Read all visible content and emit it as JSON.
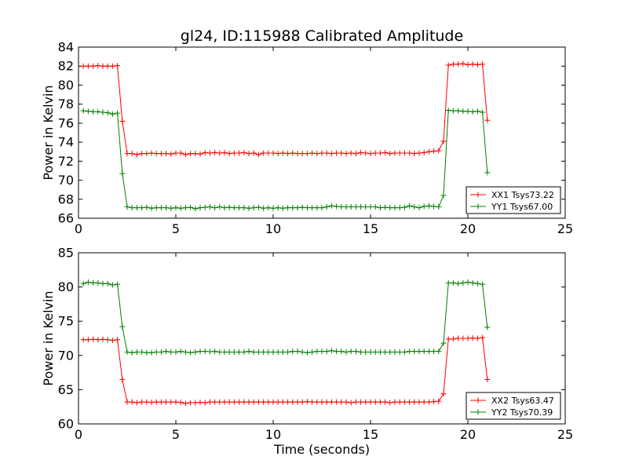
{
  "chart_data": [
    {
      "type": "line",
      "title": "gl24, ID:115988 Calibrated Amplitude",
      "xlabel": "",
      "ylabel": "Power in Kelvin",
      "xlim": [
        0,
        25
      ],
      "ylim": [
        66,
        84
      ],
      "xticks": [
        0,
        5,
        10,
        15,
        20,
        25
      ],
      "yticks": [
        66,
        68,
        70,
        72,
        74,
        76,
        78,
        80,
        82,
        84
      ],
      "legend_position": "lower-right",
      "grid": false,
      "series": [
        {
          "name": "XX1 Tsys73.22",
          "color": "#ff0000",
          "x": [
            0.25,
            0.5,
            0.75,
            1.0,
            1.25,
            1.5,
            1.75,
            2.0,
            2.25,
            2.5,
            2.75,
            3.0,
            3.25,
            3.5,
            3.75,
            4.0,
            4.25,
            4.5,
            4.75,
            5.0,
            5.25,
            5.5,
            5.75,
            6.0,
            6.25,
            6.5,
            6.75,
            7.0,
            7.25,
            7.5,
            7.75,
            8.0,
            8.25,
            8.5,
            8.75,
            9.0,
            9.25,
            9.5,
            9.75,
            10.0,
            10.25,
            10.5,
            10.75,
            11.0,
            11.25,
            11.5,
            11.75,
            12.0,
            12.25,
            12.5,
            12.75,
            13.0,
            13.25,
            13.5,
            13.75,
            14.0,
            14.25,
            14.5,
            14.75,
            15.0,
            15.25,
            15.5,
            15.75,
            16.0,
            16.25,
            16.5,
            16.75,
            17.0,
            17.25,
            17.5,
            17.75,
            18.0,
            18.25,
            18.5,
            18.75,
            19.0,
            19.25,
            19.5,
            19.75,
            20.0,
            20.25,
            20.5,
            20.75,
            21.0
          ],
          "values": [
            82.0,
            82.0,
            82.0,
            82.05,
            82.0,
            82.0,
            82.0,
            82.05,
            76.2,
            72.8,
            72.8,
            72.7,
            72.8,
            72.8,
            72.85,
            72.8,
            72.8,
            72.8,
            72.75,
            72.85,
            72.85,
            72.7,
            72.8,
            72.8,
            72.75,
            72.9,
            72.85,
            72.9,
            72.85,
            72.9,
            72.8,
            72.85,
            72.85,
            72.9,
            72.8,
            72.85,
            72.7,
            72.85,
            72.85,
            72.85,
            72.8,
            72.85,
            72.8,
            72.85,
            72.8,
            72.8,
            72.8,
            72.85,
            72.8,
            72.85,
            72.85,
            72.8,
            72.85,
            72.85,
            72.8,
            72.85,
            72.8,
            72.9,
            72.85,
            72.8,
            72.85,
            72.85,
            72.9,
            72.8,
            72.85,
            72.85,
            72.85,
            72.85,
            72.8,
            72.85,
            72.9,
            73.0,
            73.05,
            73.1,
            74.1,
            82.1,
            82.2,
            82.2,
            82.25,
            82.15,
            82.2,
            82.15,
            82.2,
            76.3
          ]
        },
        {
          "name": "YY1 Tsys67.00",
          "color": "#008000",
          "x": [
            0.25,
            0.5,
            0.75,
            1.0,
            1.25,
            1.5,
            1.75,
            2.0,
            2.25,
            2.5,
            2.75,
            3.0,
            3.25,
            3.5,
            3.75,
            4.0,
            4.25,
            4.5,
            4.75,
            5.0,
            5.25,
            5.5,
            5.75,
            6.0,
            6.25,
            6.5,
            6.75,
            7.0,
            7.25,
            7.5,
            7.75,
            8.0,
            8.25,
            8.5,
            8.75,
            9.0,
            9.25,
            9.5,
            9.75,
            10.0,
            10.25,
            10.5,
            10.75,
            11.0,
            11.25,
            11.5,
            11.75,
            12.0,
            12.25,
            12.5,
            12.75,
            13.0,
            13.25,
            13.5,
            13.75,
            14.0,
            14.25,
            14.5,
            14.75,
            15.0,
            15.25,
            15.5,
            15.75,
            16.0,
            16.25,
            16.5,
            16.75,
            17.0,
            17.25,
            17.5,
            17.75,
            18.0,
            18.25,
            18.5,
            18.75,
            19.0,
            19.25,
            19.5,
            19.75,
            20.0,
            20.25,
            20.5,
            20.75,
            21.0
          ],
          "values": [
            77.3,
            77.25,
            77.2,
            77.2,
            77.15,
            77.1,
            76.95,
            77.05,
            70.7,
            67.2,
            67.1,
            67.1,
            67.1,
            67.15,
            67.05,
            67.1,
            67.1,
            67.1,
            67.05,
            67.1,
            67.05,
            67.1,
            67.15,
            67.0,
            67.1,
            67.15,
            67.2,
            67.1,
            67.2,
            67.1,
            67.15,
            67.1,
            67.1,
            67.1,
            67.05,
            67.1,
            67.15,
            67.05,
            67.1,
            67.05,
            67.1,
            67.05,
            67.1,
            67.1,
            67.1,
            67.15,
            67.1,
            67.1,
            67.1,
            67.1,
            67.2,
            67.3,
            67.25,
            67.2,
            67.2,
            67.2,
            67.2,
            67.2,
            67.2,
            67.2,
            67.2,
            67.1,
            67.15,
            67.1,
            67.1,
            67.1,
            67.15,
            67.3,
            67.2,
            67.1,
            67.25,
            67.3,
            67.25,
            67.2,
            68.4,
            77.35,
            77.3,
            77.3,
            77.25,
            77.25,
            77.2,
            77.25,
            77.15,
            70.8
          ]
        }
      ]
    },
    {
      "type": "line",
      "title": "",
      "xlabel": "Time (seconds)",
      "ylabel": "Power in Kelvin",
      "xlim": [
        0,
        25
      ],
      "ylim": [
        60,
        85
      ],
      "xticks": [
        0,
        5,
        10,
        15,
        20,
        25
      ],
      "yticks": [
        60,
        65,
        70,
        75,
        80,
        85
      ],
      "legend_position": "lower-right",
      "grid": false,
      "series": [
        {
          "name": "XX2 Tsys63.47",
          "color": "#ff0000",
          "x": [
            0.25,
            0.5,
            0.75,
            1.0,
            1.25,
            1.5,
            1.75,
            2.0,
            2.25,
            2.5,
            2.75,
            3.0,
            3.25,
            3.5,
            3.75,
            4.0,
            4.25,
            4.5,
            4.75,
            5.0,
            5.25,
            5.5,
            5.75,
            6.0,
            6.25,
            6.5,
            6.75,
            7.0,
            7.25,
            7.5,
            7.75,
            8.0,
            8.25,
            8.5,
            8.75,
            9.0,
            9.25,
            9.5,
            9.75,
            10.0,
            10.25,
            10.5,
            10.75,
            11.0,
            11.25,
            11.5,
            11.75,
            12.0,
            12.25,
            12.5,
            12.75,
            13.0,
            13.25,
            13.5,
            13.75,
            14.0,
            14.25,
            14.5,
            14.75,
            15.0,
            15.25,
            15.5,
            15.75,
            16.0,
            16.25,
            16.5,
            16.75,
            17.0,
            17.25,
            17.5,
            17.75,
            18.0,
            18.25,
            18.5,
            18.75,
            19.0,
            19.25,
            19.5,
            19.75,
            20.0,
            20.25,
            20.5,
            20.75,
            21.0
          ],
          "values": [
            72.3,
            72.3,
            72.35,
            72.3,
            72.35,
            72.3,
            72.2,
            72.3,
            66.5,
            63.2,
            63.2,
            63.1,
            63.2,
            63.2,
            63.15,
            63.2,
            63.2,
            63.2,
            63.2,
            63.2,
            63.15,
            63.0,
            63.1,
            63.1,
            63.15,
            63.1,
            63.2,
            63.2,
            63.2,
            63.2,
            63.2,
            63.2,
            63.2,
            63.2,
            63.2,
            63.2,
            63.2,
            63.2,
            63.2,
            63.2,
            63.2,
            63.2,
            63.2,
            63.2,
            63.2,
            63.2,
            63.25,
            63.2,
            63.2,
            63.2,
            63.2,
            63.2,
            63.2,
            63.2,
            63.2,
            63.1,
            63.2,
            63.2,
            63.2,
            63.2,
            63.2,
            63.2,
            63.2,
            63.1,
            63.2,
            63.2,
            63.2,
            63.2,
            63.2,
            63.2,
            63.2,
            63.2,
            63.25,
            63.3,
            64.4,
            72.4,
            72.4,
            72.5,
            72.5,
            72.5,
            72.55,
            72.5,
            72.6,
            66.5
          ]
        },
        {
          "name": "YY2 Tsys70.39",
          "color": "#008000",
          "x": [
            0.25,
            0.5,
            0.75,
            1.0,
            1.25,
            1.5,
            1.75,
            2.0,
            2.25,
            2.5,
            2.75,
            3.0,
            3.25,
            3.5,
            3.75,
            4.0,
            4.25,
            4.5,
            4.75,
            5.0,
            5.25,
            5.5,
            5.75,
            6.0,
            6.25,
            6.5,
            6.75,
            7.0,
            7.25,
            7.5,
            7.75,
            8.0,
            8.25,
            8.5,
            8.75,
            9.0,
            9.25,
            9.5,
            9.75,
            10.0,
            10.25,
            10.5,
            10.75,
            11.0,
            11.25,
            11.5,
            11.75,
            12.0,
            12.25,
            12.5,
            12.75,
            13.0,
            13.25,
            13.5,
            13.75,
            14.0,
            14.25,
            14.5,
            14.75,
            15.0,
            15.25,
            15.5,
            15.75,
            16.0,
            16.25,
            16.5,
            16.75,
            17.0,
            17.25,
            17.5,
            17.75,
            18.0,
            18.25,
            18.5,
            18.75,
            19.0,
            19.25,
            19.5,
            19.75,
            20.0,
            20.25,
            20.5,
            20.75,
            21.0
          ],
          "values": [
            80.5,
            80.7,
            80.6,
            80.6,
            80.5,
            80.5,
            80.3,
            80.4,
            74.2,
            70.5,
            70.4,
            70.5,
            70.5,
            70.4,
            70.4,
            70.5,
            70.5,
            70.6,
            70.5,
            70.5,
            70.6,
            70.5,
            70.4,
            70.5,
            70.6,
            70.6,
            70.55,
            70.6,
            70.5,
            70.5,
            70.5,
            70.5,
            70.5,
            70.5,
            70.6,
            70.5,
            70.5,
            70.5,
            70.5,
            70.5,
            70.5,
            70.5,
            70.5,
            70.6,
            70.6,
            70.5,
            70.4,
            70.5,
            70.6,
            70.6,
            70.6,
            70.7,
            70.6,
            70.6,
            70.5,
            70.6,
            70.6,
            70.5,
            70.5,
            70.5,
            70.5,
            70.5,
            70.5,
            70.5,
            70.5,
            70.5,
            70.5,
            70.6,
            70.6,
            70.6,
            70.6,
            70.6,
            70.6,
            70.6,
            71.8,
            80.6,
            80.6,
            80.5,
            80.6,
            80.7,
            80.6,
            80.5,
            80.4,
            74.1
          ]
        }
      ]
    }
  ]
}
